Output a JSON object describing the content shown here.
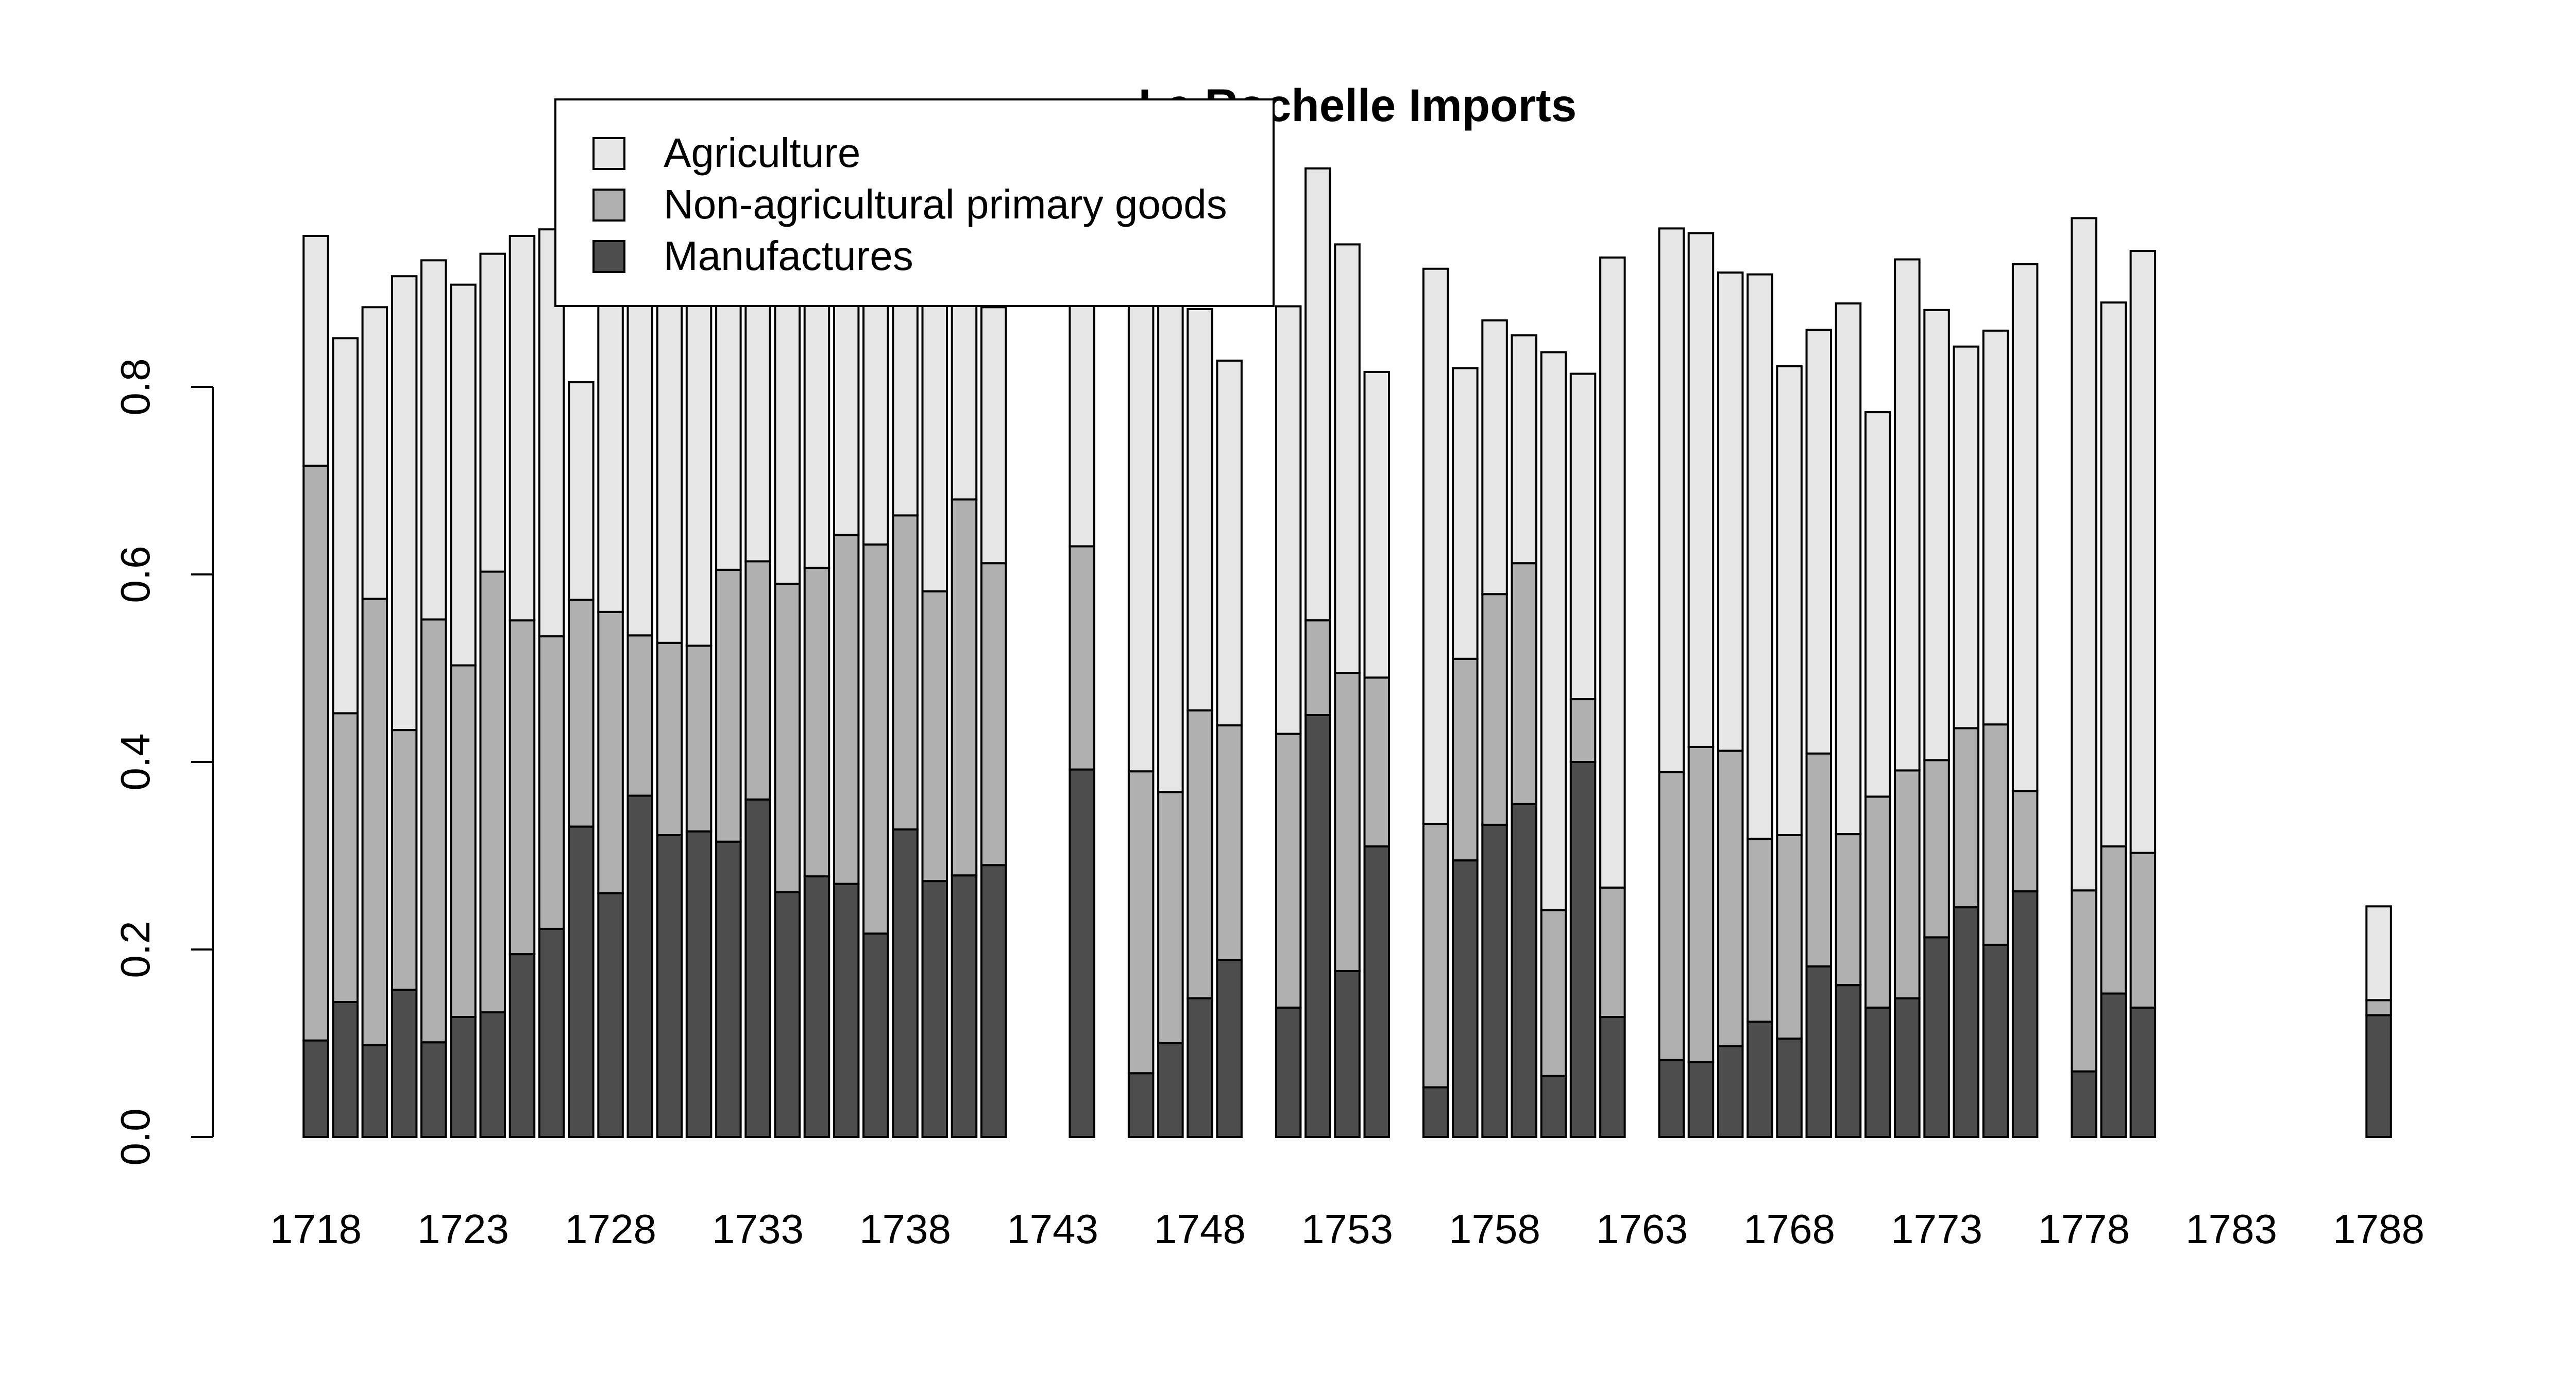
{
  "chart_data": {
    "type": "bar",
    "stacked": true,
    "title": "La Rochelle Imports",
    "xlabel": "",
    "ylabel": "",
    "ylim": [
      0,
      1.0
    ],
    "y_ticks": [
      "0.0",
      "0.2",
      "0.4",
      "0.6",
      "0.8"
    ],
    "x_tick_labels": [
      "1718",
      "1723",
      "1728",
      "1733",
      "1738",
      "1743",
      "1748",
      "1753",
      "1758",
      "1763",
      "1768",
      "1773",
      "1778",
      "1783",
      "1788"
    ],
    "legend": {
      "placement": "top-left"
    },
    "colors": {
      "Agriculture": "#e6e6e6",
      "Non-agricultural primary goods": "#b0b0b0",
      "Manufactures": "#4d4d4d"
    },
    "years": [
      1718,
      1719,
      1720,
      1721,
      1722,
      1723,
      1724,
      1725,
      1726,
      1727,
      1728,
      1729,
      1730,
      1731,
      1732,
      1733,
      1734,
      1735,
      1736,
      1737,
      1738,
      1739,
      1740,
      1741,
      1742,
      1743,
      1744,
      1745,
      1746,
      1747,
      1748,
      1749,
      1750,
      1751,
      1752,
      1753,
      1754,
      1755,
      1756,
      1757,
      1758,
      1759,
      1760,
      1761,
      1762,
      1763,
      1764,
      1765,
      1766,
      1767,
      1768,
      1769,
      1770,
      1771,
      1772,
      1773,
      1774,
      1775,
      1776,
      1777,
      1778,
      1779,
      1780,
      1781,
      1782,
      1783,
      1784,
      1785,
      1786,
      1787,
      1788
    ],
    "series": [
      {
        "name": "Manufactures",
        "values": [
          0.103,
          0.144,
          0.098,
          0.157,
          0.101,
          0.128,
          0.133,
          0.195,
          0.222,
          0.331,
          0.26,
          0.364,
          0.322,
          0.326,
          0.315,
          0.36,
          0.261,
          0.278,
          0.27,
          0.217,
          0.328,
          0.273,
          0.279,
          0.29,
          null,
          null,
          0.392,
          null,
          0.068,
          0.1,
          0.148,
          0.189,
          null,
          0.138,
          0.45,
          0.177,
          0.31,
          null,
          0.053,
          0.295,
          0.333,
          0.355,
          0.065,
          0.4,
          0.128,
          null,
          0.082,
          0.08,
          0.097,
          0.123,
          0.105,
          0.182,
          0.162,
          0.138,
          0.148,
          0.213,
          0.245,
          0.205,
          0.262,
          null,
          0.07,
          0.153,
          0.138,
          null,
          null,
          null,
          null,
          null,
          null,
          null,
          0.13
        ]
      },
      {
        "name": "Non-agricultural primary goods",
        "values": [
          0.613,
          0.308,
          0.476,
          0.277,
          0.451,
          0.375,
          0.47,
          0.356,
          0.312,
          0.242,
          0.3,
          0.171,
          0.205,
          0.198,
          0.29,
          0.254,
          0.329,
          0.329,
          0.372,
          0.415,
          0.335,
          0.309,
          0.401,
          0.322,
          null,
          null,
          0.238,
          null,
          0.322,
          0.268,
          0.307,
          0.25,
          null,
          0.292,
          0.101,
          0.318,
          0.18,
          null,
          0.281,
          0.215,
          0.246,
          0.257,
          0.177,
          0.067,
          0.138,
          null,
          0.307,
          0.336,
          0.315,
          0.195,
          0.217,
          0.227,
          0.161,
          0.225,
          0.243,
          0.189,
          0.191,
          0.235,
          0.107,
          null,
          0.193,
          0.157,
          0.165,
          null,
          null,
          null,
          null,
          null,
          null,
          null,
          0.016
        ]
      },
      {
        "name": "Agriculture",
        "values": [
          0.245,
          0.4,
          0.311,
          0.484,
          0.383,
          0.406,
          0.339,
          0.41,
          0.434,
          0.232,
          0.427,
          0.373,
          0.386,
          0.393,
          0.307,
          0.299,
          0.324,
          0.339,
          0.291,
          0.315,
          0.283,
          0.341,
          0.276,
          0.273,
          null,
          null,
          0.275,
          null,
          0.5,
          0.534,
          0.428,
          0.389,
          null,
          0.456,
          0.482,
          0.457,
          0.326,
          null,
          0.592,
          0.31,
          0.292,
          0.243,
          0.595,
          0.347,
          0.672,
          null,
          0.58,
          0.548,
          0.51,
          0.602,
          0.5,
          0.452,
          0.566,
          0.41,
          0.545,
          0.48,
          0.407,
          0.42,
          0.562,
          null,
          0.717,
          0.58,
          0.642,
          null,
          null,
          null,
          null,
          null,
          null,
          null,
          0.1
        ]
      }
    ]
  }
}
